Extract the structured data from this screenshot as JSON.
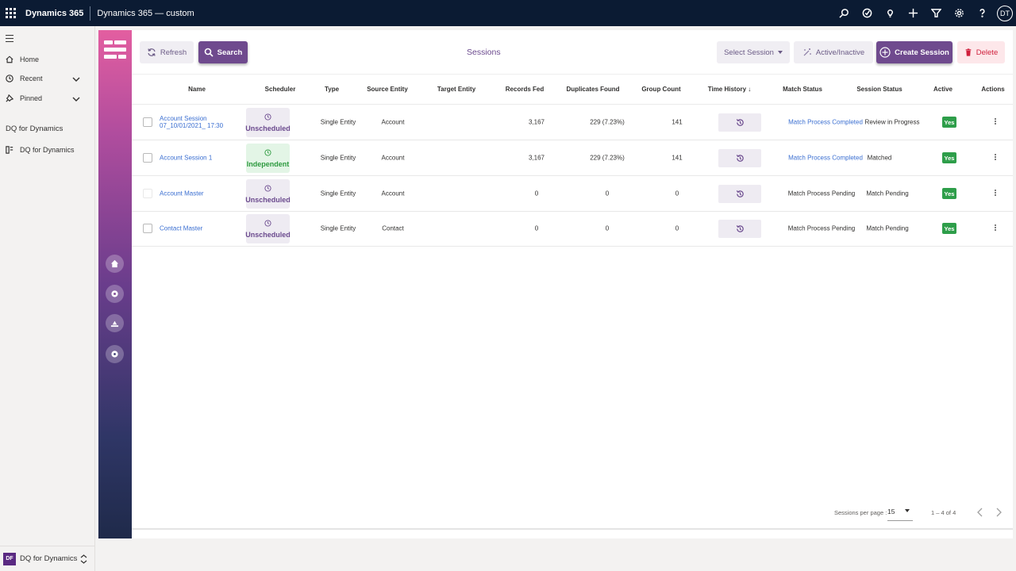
{
  "topbar": {
    "brand": "Dynamics 365",
    "app_name": "Dynamics 365 — custom",
    "avatar_initials": "DT"
  },
  "nav": {
    "items": [
      {
        "label": "Home"
      },
      {
        "label": "Recent"
      },
      {
        "label": "Pinned"
      }
    ],
    "section_heading": "DQ for Dynamics",
    "section_item": "DQ for Dynamics",
    "area_badge": "DF",
    "area_label": "DQ for Dynamics"
  },
  "toolbar": {
    "refresh_label": "Refresh",
    "search_label": "Search",
    "title": "Sessions",
    "select_session_label": "Select Session",
    "active_inactive_label": "Active/Inactive",
    "create_session_label": "Create Session",
    "delete_label": "Delete"
  },
  "table": {
    "columns": [
      "Name",
      "Scheduler",
      "Type",
      "Source Entity",
      "Target Entity",
      "Records Fed",
      "Duplicates Found",
      "Group Count",
      "Time History",
      "Match Status",
      "Session Status",
      "Active",
      "Actions"
    ],
    "rows": [
      {
        "name": "Account Session 07_10/01/2021_ 17:30",
        "scheduler": "Unscheduled",
        "type": "Single Entity",
        "source": "Account",
        "target": "",
        "records_fed": "3,167",
        "duplicates": "229 (7.23%)",
        "group_count": "141",
        "match_status": "Match Process Completed",
        "session_status": "Review in Progress",
        "active": "Yes"
      },
      {
        "name": "Account Session 1",
        "scheduler": "Independent",
        "type": "Single Entity",
        "source": "Account",
        "target": "",
        "records_fed": "3,167",
        "duplicates": "229 (7.23%)",
        "group_count": "141",
        "match_status": "Match Process Completed",
        "session_status": "Matched",
        "active": "Yes"
      },
      {
        "name": "Account Master",
        "scheduler": "Unscheduled",
        "type": "Single Entity",
        "source": "Account",
        "target": "",
        "records_fed": "0",
        "duplicates": "0",
        "group_count": "0",
        "match_status": "Match Process Pending",
        "session_status": "Match Pending",
        "active": "Yes"
      },
      {
        "name": "Contact Master",
        "scheduler": "Unscheduled",
        "type": "Single Entity",
        "source": "Contact",
        "target": "",
        "records_fed": "0",
        "duplicates": "0",
        "group_count": "0",
        "match_status": "Match Process Pending",
        "session_status": "Match Pending",
        "active": "Yes"
      }
    ]
  },
  "pagination": {
    "per_page_label": "Sessions per page :",
    "per_page_value": "15",
    "range": "1 – 4 of 4"
  },
  "colors": {
    "accent": "#6f4a8e",
    "link": "#3b6fd1",
    "success": "#2e9e4a",
    "danger": "#d01f3c",
    "topbar": "#0b1b33"
  }
}
